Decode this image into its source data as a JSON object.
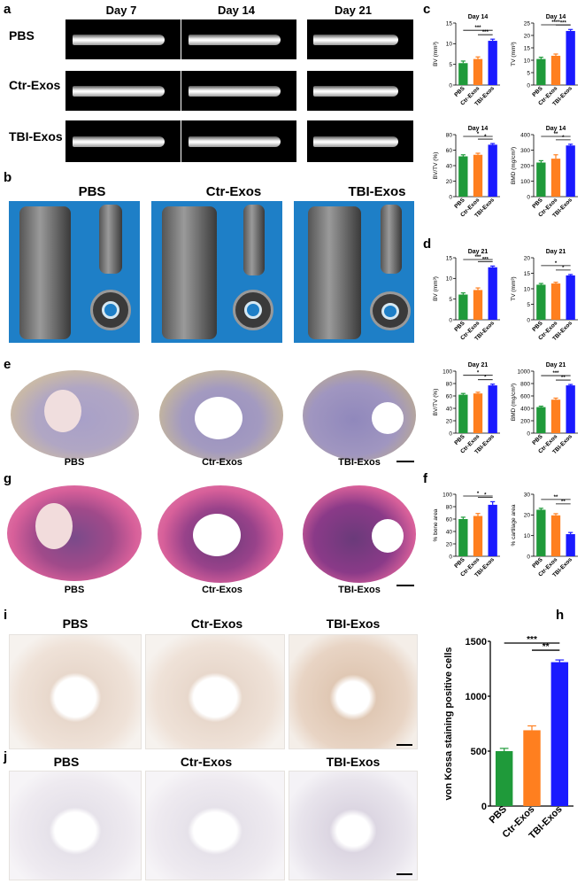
{
  "panel_letters": {
    "a": "a",
    "b": "b",
    "c": "c",
    "d": "d",
    "e": "e",
    "f": "f",
    "g": "g",
    "h": "h",
    "i": "i",
    "j": "j"
  },
  "xray": {
    "days": [
      "Day 7",
      "Day 14",
      "Day 21"
    ],
    "rows": [
      "PBS",
      "Ctr-Exos",
      "TBI-Exos"
    ]
  },
  "ct3d": {
    "titles": [
      "PBS",
      "Ctr-Exos",
      "TBI-Exos"
    ],
    "bg_color": "#1e7fc7"
  },
  "section_e": {
    "labels": [
      "PBS",
      "Ctr-Exos",
      "TBI-Exos"
    ]
  },
  "section_g": {
    "labels": [
      "PBS",
      "Ctr-Exos",
      "TBI-Exos"
    ]
  },
  "ihc_i": {
    "labels": [
      "PBS",
      "Ctr-Exos",
      "TBI-Exos"
    ]
  },
  "ihc_j": {
    "labels": [
      "PBS",
      "Ctr-Exos",
      "TBI-Exos"
    ]
  },
  "colors": {
    "PBS": "#1f9a3a",
    "Ctr-Exos": "#ff7f1f",
    "TBI-Exos": "#1a1aff"
  },
  "chart_data": [
    {
      "id": "c1",
      "type": "bar",
      "title": "Day 14",
      "ylabel": "BV (mm³)",
      "categories": [
        "PBS",
        "Ctr-Exos",
        "TBI-Exos"
      ],
      "values": [
        5.3,
        6.3,
        10.7
      ],
      "errors": [
        0.5,
        0.5,
        0.4
      ],
      "ylim": [
        0,
        15
      ],
      "yticks": [
        0,
        5,
        10,
        15
      ],
      "sig": [
        {
          "from": 0,
          "to": 2,
          "label": "***"
        },
        {
          "from": 1,
          "to": 2,
          "label": "***"
        }
      ]
    },
    {
      "id": "c2",
      "type": "bar",
      "title": "Day 14",
      "ylabel": "TV (mm³)",
      "categories": [
        "PBS",
        "Ctr-Exos",
        "TBI-Exos"
      ],
      "values": [
        10.5,
        11.8,
        21.8
      ],
      "errors": [
        0.7,
        0.7,
        0.6
      ],
      "ylim": [
        0,
        25
      ],
      "yticks": [
        0,
        5,
        10,
        15,
        20,
        25
      ],
      "sig": [
        {
          "from": 0,
          "to": 2,
          "label": "****"
        },
        {
          "from": 1,
          "to": 2,
          "label": "***"
        }
      ]
    },
    {
      "id": "c3",
      "type": "bar",
      "title": "Day 14",
      "ylabel": "BV/TV (%)",
      "categories": [
        "PBS",
        "Ctr-Exos",
        "TBI-Exos"
      ],
      "values": [
        52,
        54,
        67
      ],
      "errors": [
        2,
        2,
        1.5
      ],
      "ylim": [
        0,
        80
      ],
      "yticks": [
        0,
        20,
        40,
        60,
        80
      ],
      "sig": [
        {
          "from": 0,
          "to": 2,
          "label": "*"
        },
        {
          "from": 1,
          "to": 2,
          "label": "*"
        }
      ]
    },
    {
      "id": "c4",
      "type": "bar",
      "title": "Day 14",
      "ylabel": "BMD (mg/cm³)",
      "categories": [
        "PBS",
        "Ctr-Exos",
        "TBI-Exos"
      ],
      "values": [
        220,
        245,
        330
      ],
      "errors": [
        12,
        25,
        8
      ],
      "ylim": [
        0,
        400
      ],
      "yticks": [
        0,
        100,
        200,
        300,
        400
      ],
      "sig": [
        {
          "from": 0,
          "to": 2,
          "label": "**"
        },
        {
          "from": 1,
          "to": 2,
          "label": "*"
        }
      ]
    },
    {
      "id": "d1",
      "type": "bar",
      "title": "Day 21",
      "ylabel": "BV (mm³)",
      "categories": [
        "PBS",
        "Ctr-Exos",
        "TBI-Exos"
      ],
      "values": [
        6.1,
        7.2,
        12.7
      ],
      "errors": [
        0.4,
        0.5,
        0.3
      ],
      "ylim": [
        0,
        15
      ],
      "yticks": [
        0,
        5,
        10,
        15
      ],
      "sig": [
        {
          "from": 0,
          "to": 2,
          "label": "***"
        },
        {
          "from": 1,
          "to": 2,
          "label": "***"
        }
      ]
    },
    {
      "id": "d2",
      "type": "bar",
      "title": "Day 21",
      "ylabel": "TV (mm³)",
      "categories": [
        "PBS",
        "Ctr-Exos",
        "TBI-Exos"
      ],
      "values": [
        11.3,
        11.7,
        14.3
      ],
      "errors": [
        0.4,
        0.4,
        0.3
      ],
      "ylim": [
        0,
        20
      ],
      "yticks": [
        0,
        5,
        10,
        15,
        20
      ],
      "sig": [
        {
          "from": 0,
          "to": 2,
          "label": "*"
        },
        {
          "from": 1,
          "to": 2,
          "label": "*"
        }
      ]
    },
    {
      "id": "d3",
      "type": "bar",
      "title": "Day 21",
      "ylabel": "BV/TV (%)",
      "categories": [
        "PBS",
        "Ctr-Exos",
        "TBI-Exos"
      ],
      "values": [
        62,
        64,
        77
      ],
      "errors": [
        2,
        2,
        2
      ],
      "ylim": [
        0,
        100
      ],
      "yticks": [
        0,
        20,
        40,
        60,
        80,
        100
      ],
      "sig": [
        {
          "from": 0,
          "to": 2,
          "label": "*"
        },
        {
          "from": 1,
          "to": 2,
          "label": "*"
        }
      ]
    },
    {
      "id": "d4",
      "type": "bar",
      "title": "Day 21",
      "ylabel": "BMD (mg/cm³)",
      "categories": [
        "PBS",
        "Ctr-Exos",
        "TBI-Exos"
      ],
      "values": [
        420,
        540,
        770
      ],
      "errors": [
        15,
        25,
        15
      ],
      "ylim": [
        0,
        1000
      ],
      "yticks": [
        0,
        200,
        400,
        600,
        800,
        1000
      ],
      "sig": [
        {
          "from": 0,
          "to": 2,
          "label": "***"
        },
        {
          "from": 1,
          "to": 2,
          "label": "**"
        }
      ]
    },
    {
      "id": "f1",
      "type": "bar",
      "title": "",
      "ylabel": "% bone area",
      "categories": [
        "PBS",
        "Ctr-Exos",
        "TBI-Exos"
      ],
      "values": [
        60,
        65,
        83
      ],
      "errors": [
        3,
        4,
        5
      ],
      "ylim": [
        0,
        100
      ],
      "yticks": [
        0,
        20,
        40,
        60,
        80,
        100
      ],
      "sig": [
        {
          "from": 0,
          "to": 2,
          "label": "*"
        },
        {
          "from": 1,
          "to": 2,
          "label": "*"
        }
      ]
    },
    {
      "id": "f2",
      "type": "bar",
      "title": "",
      "ylabel": "% cartilage area",
      "categories": [
        "PBS",
        "Ctr-Exos",
        "TBI-Exos"
      ],
      "values": [
        22.5,
        19.8,
        10.7
      ],
      "errors": [
        0.7,
        0.8,
        0.8
      ],
      "ylim": [
        0,
        30
      ],
      "yticks": [
        0,
        10,
        20,
        30
      ],
      "sig": [
        {
          "from": 0,
          "to": 2,
          "label": "**"
        },
        {
          "from": 1,
          "to": 2,
          "label": "**"
        }
      ]
    },
    {
      "id": "h",
      "type": "bar",
      "title": "",
      "ylabel": "von Kossa staining positive cells",
      "categories": [
        "PBS",
        "Ctr-Exos",
        "TBI-Exos"
      ],
      "values": [
        500,
        690,
        1310
      ],
      "errors": [
        25,
        40,
        20
      ],
      "ylim": [
        0,
        1500
      ],
      "yticks": [
        0,
        500,
        1000,
        1500
      ],
      "sig": [
        {
          "from": 0,
          "to": 2,
          "label": "***"
        },
        {
          "from": 1,
          "to": 2,
          "label": "**"
        }
      ]
    }
  ]
}
